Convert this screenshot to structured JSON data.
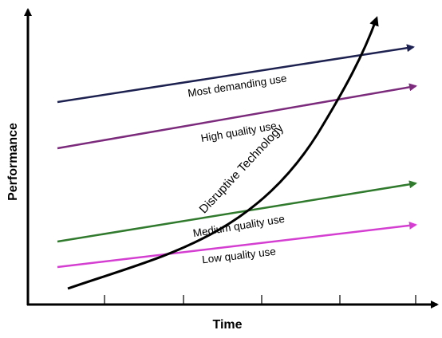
{
  "axes": {
    "x_title": "Time",
    "y_title": "Performance",
    "tick_count": 4
  },
  "lines": [
    {
      "label": "Most demanding use",
      "color": "#1c2150"
    },
    {
      "label": "High quality use",
      "color": "#7b2a7c"
    },
    {
      "label": "Medium quality use",
      "color": "#2f7a2c"
    },
    {
      "label": "Low quality use",
      "color": "#d43fd1"
    }
  ],
  "curve": {
    "label": "Disruptive Technology",
    "color": "#000000"
  }
}
